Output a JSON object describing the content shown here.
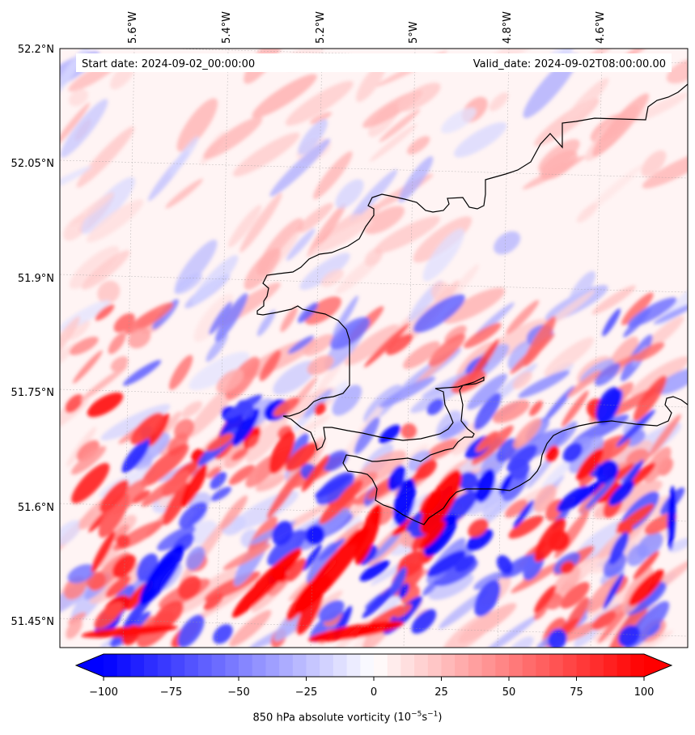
{
  "chart_data": {
    "type": "heatmap",
    "title": "",
    "annotations": {
      "start_date": "Start date: 2024-09-02_00:00:00",
      "valid_date": "Valid_date: 2024-09-02T08:00:00.00"
    },
    "field": "850 hPa absolute vorticity",
    "units_html": "(10<sup>−5</sup>s<sup>−1</sup>)",
    "colormap": "bwr",
    "extend": "both",
    "vmin": -100,
    "vmax": 100,
    "level_step": 5,
    "colorbar_ticks": [
      "−100",
      "−75",
      "−50",
      "−25",
      "0",
      "25",
      "50",
      "75",
      "100"
    ],
    "colorbar_tick_values": [
      -100,
      -75,
      -50,
      -25,
      0,
      25,
      50,
      75,
      100
    ],
    "lon_ticks": [
      "5.6°W",
      "5.4°W",
      "5.2°W",
      "5°W",
      "4.8°W",
      "4.6°W"
    ],
    "lon_tick_values": [
      -5.6,
      -5.4,
      -5.2,
      -5.0,
      -4.8,
      -4.6
    ],
    "lat_ticks": [
      "52.2°N",
      "52.05°N",
      "51.9°N",
      "51.75°N",
      "51.6°N",
      "51.45°N"
    ],
    "lat_tick_values": [
      52.2,
      52.05,
      51.9,
      51.75,
      51.6,
      51.45
    ],
    "grid": true,
    "coastline": true,
    "colors": {
      "positive": "#ff0000",
      "negative": "#0000ff",
      "neutral": "#ffffff",
      "coast": "#000000"
    }
  }
}
